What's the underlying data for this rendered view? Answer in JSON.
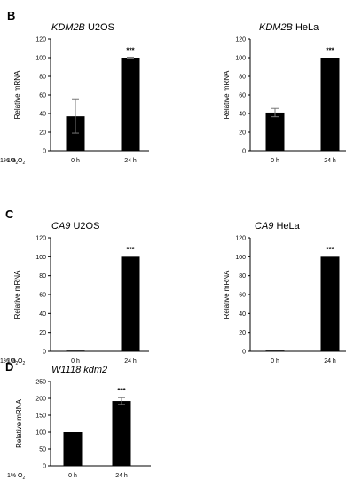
{
  "panels": {
    "B": {
      "letter": "B"
    },
    "C": {
      "letter": "C"
    },
    "D": {
      "letter": "D"
    }
  },
  "chart_data": [
    {
      "id": "B-U2OS",
      "panel": "B",
      "type": "bar",
      "title_italic": "KDM2B",
      "title_rest": " U2OS",
      "ylabel": "Relative mRNA",
      "ylim": [
        0,
        120
      ],
      "yticks": [
        "0",
        "20",
        "40",
        "60",
        "80",
        "100",
        "120"
      ],
      "row_label": "1% O2",
      "categories": [
        "0 h",
        "24 h"
      ],
      "values": [
        37,
        100
      ],
      "errors": [
        18,
        0.5
      ],
      "annotations": [
        "",
        "***"
      ]
    },
    {
      "id": "B-HeLa",
      "panel": "B",
      "type": "bar",
      "title_italic": "KDM2B",
      "title_rest": " HeLa",
      "ylabel": "Relative mRNA",
      "ylim": [
        0,
        120
      ],
      "yticks": [
        "0",
        "20",
        "40",
        "60",
        "80",
        "100",
        "120"
      ],
      "row_label": "1% O2",
      "categories": [
        "0 h",
        "24 h"
      ],
      "values": [
        41,
        100
      ],
      "errors": [
        4.5,
        0.3
      ],
      "annotations": [
        "",
        "***"
      ]
    },
    {
      "id": "C-U2OS",
      "panel": "C",
      "type": "bar",
      "title_italic": "CA9",
      "title_rest": " U2OS",
      "ylabel": "Relative mRNA",
      "ylim": [
        0,
        120
      ],
      "yticks": [
        "0",
        "20",
        "40",
        "60",
        "80",
        "100",
        "120"
      ],
      "row_label": "1% O2",
      "categories": [
        "0 h",
        "24 h"
      ],
      "values": [
        0.5,
        100
      ],
      "errors": [
        0.2,
        0.3
      ],
      "annotations": [
        "",
        "***"
      ]
    },
    {
      "id": "C-HeLa",
      "panel": "C",
      "type": "bar",
      "title_italic": "CA9",
      "title_rest": " HeLa",
      "ylabel": "Relative mRNA",
      "ylim": [
        0,
        120
      ],
      "yticks": [
        "0",
        "20",
        "40",
        "60",
        "80",
        "100",
        "120"
      ],
      "row_label": "1% O2",
      "categories": [
        "0 h",
        "24 h"
      ],
      "values": [
        0.8,
        100
      ],
      "errors": [
        0.3,
        0.3
      ],
      "annotations": [
        "",
        "***"
      ]
    },
    {
      "id": "D-W1118",
      "panel": "D",
      "type": "bar",
      "title_italic": "W1118 kdm2",
      "title_rest": "",
      "ylabel": "Relative mRNA",
      "ylim": [
        0,
        250
      ],
      "yticks": [
        "0",
        "50",
        "100",
        "150",
        "200",
        "250"
      ],
      "row_label": "1% O2",
      "categories": [
        "0 h",
        "24 h"
      ],
      "values": [
        100,
        192
      ],
      "errors": [
        0.5,
        10
      ],
      "annotations": [
        "",
        "***"
      ]
    }
  ]
}
